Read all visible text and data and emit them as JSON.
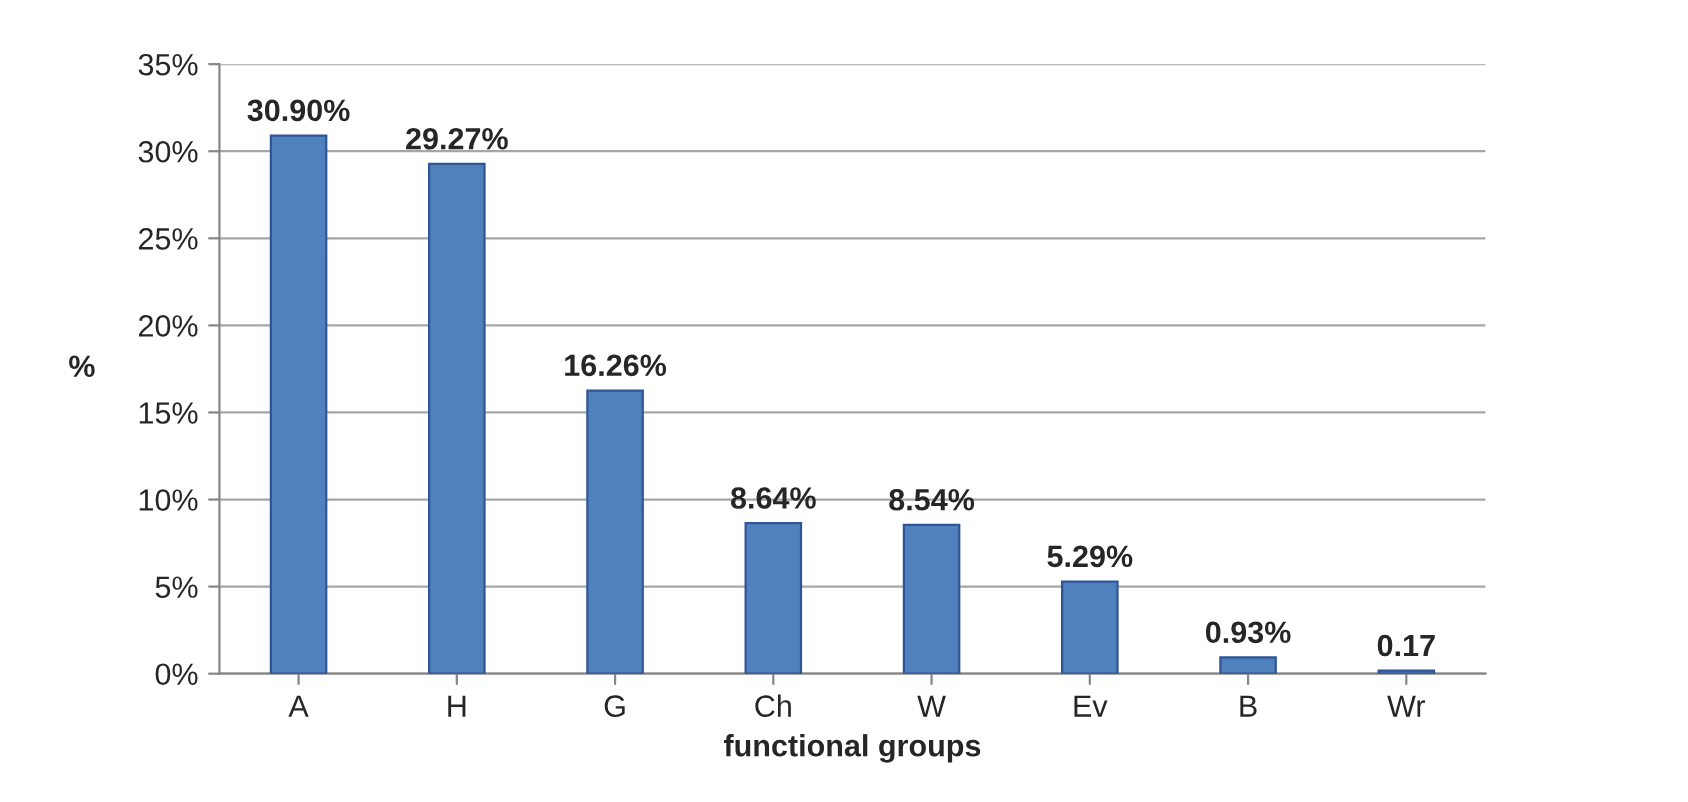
{
  "chart_data": {
    "type": "bar",
    "xlabel": "functional groups",
    "ylabel": "%",
    "categories": [
      "A",
      "H",
      "G",
      "Ch",
      "W",
      "Ev",
      "B",
      "Wr"
    ],
    "values": [
      30.9,
      29.27,
      16.26,
      8.64,
      8.54,
      5.29,
      0.93,
      0.17
    ],
    "value_labels": [
      "30.90%",
      "29.27%",
      "16.26%",
      "8.64%",
      "8.54%",
      "5.29%",
      "0.93%",
      "0.17"
    ],
    "color": "#4f81bd",
    "ylim": [
      0,
      35
    ],
    "yticks": [
      {
        "value": 0,
        "label": "0%"
      },
      {
        "value": 5,
        "label": "5%"
      },
      {
        "value": 10,
        "label": "10%"
      },
      {
        "value": 15,
        "label": "15%"
      },
      {
        "value": 20,
        "label": "20%"
      },
      {
        "value": 25,
        "label": "25%"
      },
      {
        "value": 30,
        "label": "30%"
      },
      {
        "value": 35,
        "label": "35%"
      }
    ],
    "grid": "y",
    "legend": false
  }
}
